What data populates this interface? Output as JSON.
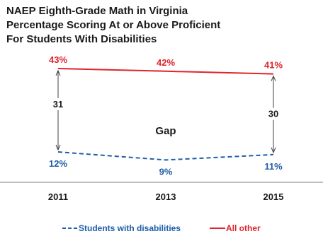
{
  "chart_data": {
    "type": "line",
    "title": [
      "NAEP Eighth-Grade Math in Virginia",
      "Percentage Scoring At or Above Proficient",
      "For Students With Disabilities"
    ],
    "categories": [
      "2011",
      "2013",
      "2015"
    ],
    "series": [
      {
        "name": "Students with disabilities",
        "values": [
          12,
          9,
          11
        ],
        "labels": [
          "12%",
          "9%",
          "11%"
        ],
        "color": "#1f5ea8",
        "style": "dashed"
      },
      {
        "name": "All other",
        "values": [
          43,
          42,
          41
        ],
        "labels": [
          "43%",
          "42%",
          "41%"
        ],
        "color": "#e0242b",
        "style": "solid"
      }
    ],
    "gaps": [
      {
        "category": "2011",
        "value": 31,
        "label": "31"
      },
      {
        "category": "2015",
        "value": 30,
        "label": "30"
      }
    ],
    "annotation": "Gap",
    "ylim": [
      0,
      50
    ],
    "legend_position": "bottom-center",
    "grid": false
  }
}
